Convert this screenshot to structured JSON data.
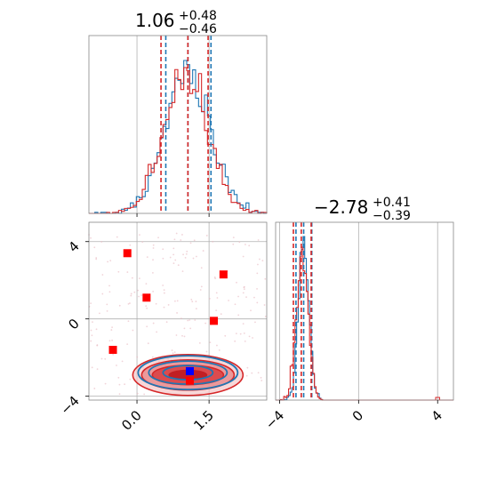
{
  "chart_data": {
    "type": "corner",
    "colors": {
      "blue": "#1f77b4",
      "red": "#d62728",
      "grid": "#b0b0b0",
      "truth": "#0000ff",
      "points": "#ff0000"
    },
    "panels": [
      {
        "id": "top-left",
        "type": "histogram",
        "title": {
          "value": "1.06",
          "upper": "+0.48",
          "lower": "−0.46"
        },
        "xlim": [
          -1.0,
          2.7
        ],
        "xgrid": [
          0.0,
          1.5
        ],
        "series": [
          {
            "name": "",
            "color": "#1f77b4",
            "quantiles": [
              0.6,
              1.06,
              1.54
            ]
          },
          {
            "name": "",
            "color": "#d62728",
            "quantiles": [
              0.5,
              1.06,
              1.48
            ]
          }
        ]
      },
      {
        "id": "bottom-left",
        "type": "contour",
        "xlim": [
          -1.0,
          2.7
        ],
        "ylim": [
          -4.2,
          5.0
        ],
        "xticks": [
          0.0,
          1.5
        ],
        "xtick_labels": [
          "0.0",
          "1.5"
        ],
        "yticks": [
          4,
          0,
          -4
        ],
        "ytick_labels": [
          "4",
          "0",
          "−4"
        ],
        "blue_center": [
          1.06,
          -2.78
        ],
        "red_center": [
          1.06,
          -2.9
        ],
        "truth": {
          "x": 1.1,
          "y": -2.7
        },
        "points": [
          {
            "x": -0.2,
            "y": 3.4
          },
          {
            "x": 0.2,
            "y": 1.1
          },
          {
            "x": 1.8,
            "y": 2.3
          },
          {
            "x": 1.6,
            "y": -0.1
          },
          {
            "x": -0.5,
            "y": -1.6
          },
          {
            "x": 1.1,
            "y": -3.2
          }
        ]
      },
      {
        "id": "bottom-right",
        "type": "histogram",
        "title": {
          "value": "−2.78",
          "upper": "+0.41",
          "lower": "−0.39"
        },
        "xlim": [
          -4.2,
          4.8
        ],
        "xticks": [
          -4,
          0,
          4
        ],
        "xtick_labels": [
          "−4",
          "0",
          "4"
        ],
        "series": [
          {
            "name": "",
            "color": "#1f77b4",
            "quantiles": [
              -3.17,
              -2.78,
              -2.37
            ]
          },
          {
            "name": "",
            "color": "#d62728",
            "quantiles": [
              -3.3,
              -2.9,
              -2.4
            ]
          }
        ]
      }
    ]
  }
}
